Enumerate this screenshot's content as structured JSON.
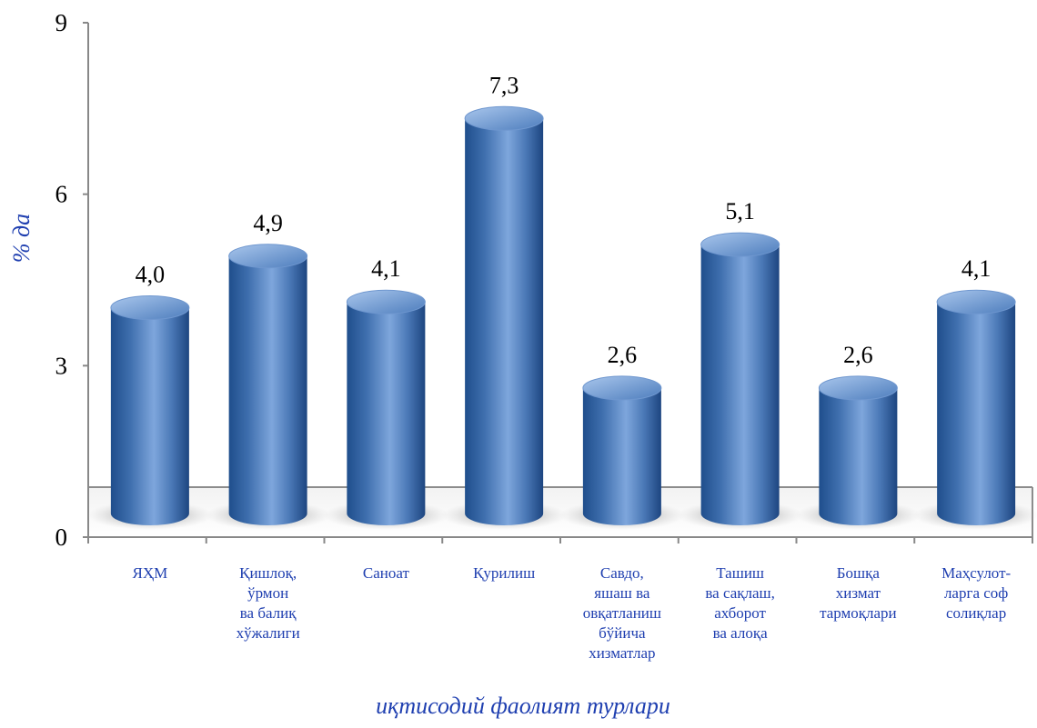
{
  "chart_data": {
    "type": "bar",
    "style": "3d-cylinder",
    "categories": [
      [
        "ЯҲМ"
      ],
      [
        "Қишлоқ,",
        "ўрмон",
        "ва балиқ",
        "хўжалиги"
      ],
      [
        "Саноат"
      ],
      [
        "Қурилиш"
      ],
      [
        "Савдо,",
        "яшаш ва",
        "овқатланиш",
        "бўйича",
        "хизматлар"
      ],
      [
        "Ташиш",
        "ва сақлаш,",
        "ахборот",
        "ва алоқа"
      ],
      [
        "Бошқа",
        "хизмат",
        "тармоқлари"
      ],
      [
        "Маҳсулот-",
        "ларга соф",
        "солиқлар"
      ]
    ],
    "values": [
      4.0,
      4.9,
      4.1,
      7.3,
      2.6,
      5.1,
      2.6,
      4.1
    ],
    "value_labels": [
      "4,0",
      "4,9",
      "4,1",
      "7,3",
      "2,6",
      "5,1",
      "2,6",
      "4,1"
    ],
    "xlabel": "иқтисодий фаолият турлари",
    "ylabel": "% да",
    "ylim": [
      0,
      9
    ],
    "yticks": [
      "0",
      "3",
      "6",
      "9"
    ],
    "grid": false,
    "colors": {
      "bar": "#4f81bd",
      "bar_dark": "#1f4e8c",
      "bar_light": "#a9c6ec",
      "axis_title": "#1f3fb0",
      "category_label": "#1f3fb0"
    }
  }
}
